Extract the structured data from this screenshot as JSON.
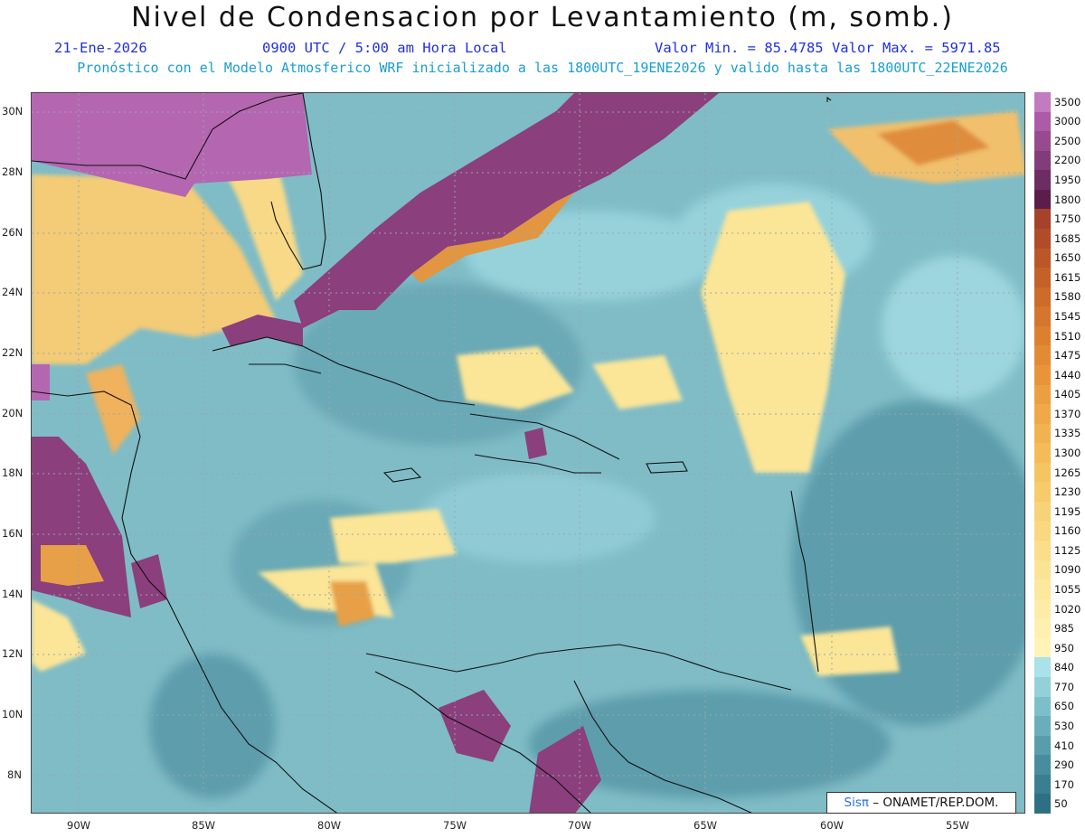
{
  "header": {
    "title": "Nivel de Condensacion por Levantamiento (m, somb.)",
    "date": "21-Ene-2026",
    "time": "0900 UTC / 5:00 am Hora Local",
    "min_max": "Valor Min. = 85.4785   Valor Max. = 5971.85",
    "model_note": "Pronóstico con el Modelo Atmosferico WRF inicializado a las 1800UTC_19ENE2026 y valido hasta las  1800UTC_22ENE2026"
  },
  "map": {
    "lat_labels": [
      "30N",
      "28N",
      "26N",
      "24N",
      "22N",
      "20N",
      "18N",
      "16N",
      "14N",
      "12N",
      "10N",
      "8N"
    ],
    "lon_labels": [
      "90W",
      "85W",
      "80W",
      "75W",
      "70W",
      "65W",
      "60W",
      "55W"
    ],
    "colors": {
      "teal_dark": "#4e8fa0",
      "teal": "#6fb0bb",
      "light_cyan": "#a7dce4",
      "yellow": "#fbe79a",
      "light_orange": "#f3c872",
      "orange": "#e79c42",
      "dark_orange": "#c9672a",
      "purple": "#8c3f7e",
      "light_purple": "#b566b1"
    }
  },
  "colorbar": {
    "ticks": [
      "3500",
      "3000",
      "2500",
      "2200",
      "1950",
      "1800",
      "1750",
      "1685",
      "1650",
      "1615",
      "1580",
      "1545",
      "1510",
      "1475",
      "1440",
      "1405",
      "1370",
      "1335",
      "1300",
      "1265",
      "1230",
      "1195",
      "1160",
      "1125",
      "1090",
      "1055",
      "1020",
      "985",
      "950",
      "840",
      "770",
      "650",
      "530",
      "410",
      "290",
      "170",
      "50"
    ],
    "colors": [
      "#c27ac0",
      "#ad5aa8",
      "#974a8e",
      "#823c7a",
      "#6c2d62",
      "#5b1e4a",
      "#a5422a",
      "#b14c2a",
      "#bb5629",
      "#c46128",
      "#cc6b2a",
      "#d4762d",
      "#dc8030",
      "#e28b35",
      "#e8953a",
      "#ec9f40",
      "#efa948",
      "#f1b350",
      "#f3bc59",
      "#f5c463",
      "#f7cb6c",
      "#f8d276",
      "#f9d880",
      "#fade8a",
      "#fbe394",
      "#fce89e",
      "#fdeca7",
      "#fef0b0",
      "#fff3b8",
      "#a9e2e8",
      "#94d0d8",
      "#7dbfc9",
      "#69aebb",
      "#579dac",
      "#478d9e",
      "#3a7e91",
      "#2f6f84"
    ]
  },
  "credit": {
    "brand": "Sisπ",
    "text": " – ONAMET/REP.DOM."
  }
}
